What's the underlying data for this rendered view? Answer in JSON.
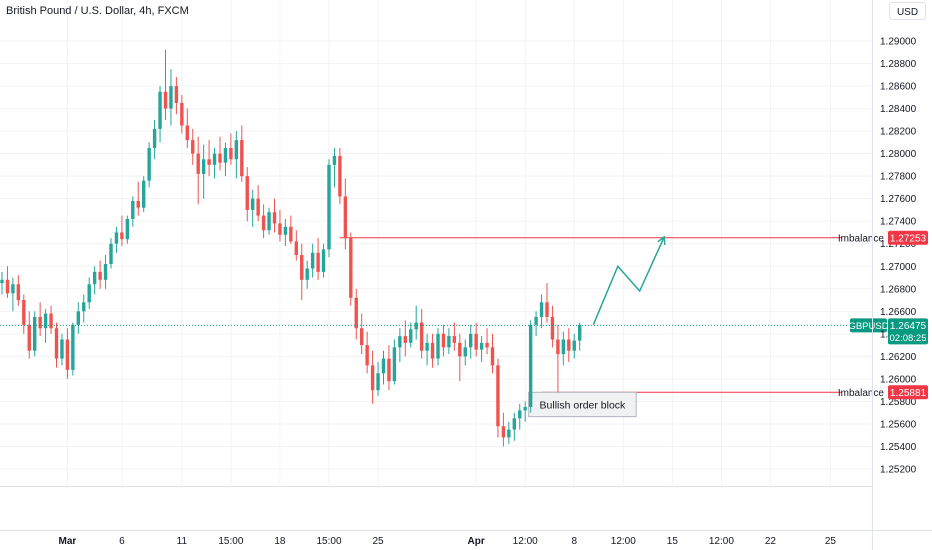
{
  "header": {
    "title": "British Pound / U.S. Dollar, 4h, FXCM"
  },
  "currency_button": {
    "label": "USD"
  },
  "colors": {
    "up": "#26a69a",
    "down": "#ef5350",
    "price_line": "#089981",
    "imbalance": "#f23645",
    "projection": "#26a69a",
    "grid": "#f2f3f5",
    "text": "#131722"
  },
  "chart_data": {
    "type": "candlestick",
    "symbol": "GBPUSD",
    "interval": "4h",
    "ylim": [
      1.2505,
      1.2945
    ],
    "yticks": [
      "1.29000",
      "1.28800",
      "1.28600",
      "1.28400",
      "1.28200",
      "1.28000",
      "1.27800",
      "1.27600",
      "1.27400",
      "1.27200",
      "1.27000",
      "1.26800",
      "1.26600",
      "1.26400",
      "1.26200",
      "1.26000",
      "1.25800",
      "1.25600",
      "1.25400",
      "1.25200"
    ],
    "xticks": [
      {
        "label": "Mar",
        "bar": 12,
        "bold": true
      },
      {
        "label": "6",
        "bar": 22,
        "bold": false
      },
      {
        "label": "11",
        "bar": 33,
        "bold": false
      },
      {
        "label": "15:00",
        "bar": 42,
        "bold": false
      },
      {
        "label": "18",
        "bar": 51,
        "bold": false
      },
      {
        "label": "15:00",
        "bar": 60,
        "bold": false
      },
      {
        "label": "25",
        "bar": 69,
        "bold": false
      },
      {
        "label": "Apr",
        "bar": 87,
        "bold": true
      },
      {
        "label": "12:00",
        "bar": 96,
        "bold": false
      },
      {
        "label": "8",
        "bar": 105,
        "bold": false
      },
      {
        "label": "12:00",
        "bar": 114,
        "bold": false
      },
      {
        "label": "15",
        "bar": 123,
        "bold": false
      },
      {
        "label": "12:00",
        "bar": 132,
        "bold": false
      },
      {
        "label": "22",
        "bar": 141,
        "bold": false
      },
      {
        "label": "25",
        "bar": 152,
        "bold": false
      }
    ],
    "candles": [
      [
        1.2685,
        1.2695,
        1.2675,
        1.2688
      ],
      [
        1.2688,
        1.27,
        1.2672,
        1.2676
      ],
      [
        1.2676,
        1.269,
        1.266,
        1.2684
      ],
      [
        1.2684,
        1.2692,
        1.2665,
        1.267
      ],
      [
        1.267,
        1.2675,
        1.264,
        1.2648
      ],
      [
        1.2648,
        1.266,
        1.2618,
        1.2625
      ],
      [
        1.2625,
        1.266,
        1.262,
        1.2655
      ],
      [
        1.2655,
        1.2668,
        1.2638,
        1.2645
      ],
      [
        1.2645,
        1.2662,
        1.2632,
        1.2658
      ],
      [
        1.2658,
        1.2665,
        1.264,
        1.2645
      ],
      [
        1.2645,
        1.265,
        1.261,
        1.2618
      ],
      [
        1.2618,
        1.264,
        1.2612,
        1.2635
      ],
      [
        1.2635,
        1.2645,
        1.26,
        1.2608
      ],
      [
        1.2608,
        1.265,
        1.2603,
        1.2648
      ],
      [
        1.2648,
        1.2668,
        1.264,
        1.266
      ],
      [
        1.266,
        1.2675,
        1.265,
        1.2668
      ],
      [
        1.2668,
        1.269,
        1.2662,
        1.2684
      ],
      [
        1.2684,
        1.27,
        1.2675,
        1.2695
      ],
      [
        1.2695,
        1.2705,
        1.268,
        1.2688
      ],
      [
        1.2688,
        1.271,
        1.268,
        1.2702
      ],
      [
        1.2702,
        1.2725,
        1.2698,
        1.272
      ],
      [
        1.272,
        1.2735,
        1.2712,
        1.273
      ],
      [
        1.273,
        1.2745,
        1.2718,
        1.2724
      ],
      [
        1.2724,
        1.2745,
        1.272,
        1.2742
      ],
      [
        1.2742,
        1.2762,
        1.2735,
        1.2758
      ],
      [
        1.2758,
        1.2775,
        1.2745,
        1.2752
      ],
      [
        1.2752,
        1.278,
        1.2748,
        1.2776
      ],
      [
        1.2776,
        1.281,
        1.277,
        1.2805
      ],
      [
        1.2805,
        1.283,
        1.2795,
        1.2822
      ],
      [
        1.2822,
        1.286,
        1.281,
        1.2855
      ],
      [
        1.2855,
        1.2892,
        1.283,
        1.284
      ],
      [
        1.284,
        1.2875,
        1.2825,
        1.286
      ],
      [
        1.286,
        1.2868,
        1.2835,
        1.2845
      ],
      [
        1.2845,
        1.2852,
        1.2818,
        1.2825
      ],
      [
        1.2825,
        1.284,
        1.2805,
        1.2812
      ],
      [
        1.2812,
        1.2822,
        1.279,
        1.28
      ],
      [
        1.28,
        1.2815,
        1.2755,
        1.2782
      ],
      [
        1.2782,
        1.2808,
        1.276,
        1.2795
      ],
      [
        1.2795,
        1.2812,
        1.278,
        1.279
      ],
      [
        1.279,
        1.2805,
        1.2778,
        1.28
      ],
      [
        1.28,
        1.2815,
        1.2785,
        1.2792
      ],
      [
        1.2792,
        1.281,
        1.278,
        1.2805
      ],
      [
        1.2805,
        1.2818,
        1.279,
        1.2795
      ],
      [
        1.2795,
        1.282,
        1.2778,
        1.2812
      ],
      [
        1.2812,
        1.2825,
        1.2775,
        1.278
      ],
      [
        1.278,
        1.2788,
        1.274,
        1.275
      ],
      [
        1.275,
        1.2768,
        1.2735,
        1.276
      ],
      [
        1.276,
        1.2772,
        1.274,
        1.2745
      ],
      [
        1.2745,
        1.2755,
        1.2725,
        1.2732
      ],
      [
        1.2732,
        1.2752,
        1.2728,
        1.2748
      ],
      [
        1.2748,
        1.276,
        1.273,
        1.2738
      ],
      [
        1.2738,
        1.275,
        1.2722,
        1.2728
      ],
      [
        1.2728,
        1.2742,
        1.2718,
        1.2735
      ],
      [
        1.2735,
        1.2745,
        1.272,
        1.2722
      ],
      [
        1.2722,
        1.2732,
        1.2705,
        1.271
      ],
      [
        1.271,
        1.272,
        1.267,
        1.2688
      ],
      [
        1.2688,
        1.2705,
        1.268,
        1.2698
      ],
      [
        1.2698,
        1.272,
        1.269,
        1.2712
      ],
      [
        1.2712,
        1.2725,
        1.2688,
        1.2695
      ],
      [
        1.2695,
        1.272,
        1.269,
        1.2715
      ],
      [
        1.2715,
        1.2795,
        1.2708,
        1.279
      ],
      [
        1.279,
        1.2805,
        1.277,
        1.2798
      ],
      [
        1.2798,
        1.2805,
        1.2755,
        1.2762
      ],
      [
        1.2762,
        1.2778,
        1.2715,
        1.2725
      ],
      [
        1.2725,
        1.273,
        1.2665,
        1.2672
      ],
      [
        1.2672,
        1.268,
        1.2635,
        1.2645
      ],
      [
        1.2645,
        1.2658,
        1.2622,
        1.263
      ],
      [
        1.263,
        1.2642,
        1.2605,
        1.2612
      ],
      [
        1.2612,
        1.2625,
        1.2578,
        1.259
      ],
      [
        1.259,
        1.2615,
        1.2585,
        1.2605
      ],
      [
        1.2605,
        1.2625,
        1.2595,
        1.2618
      ],
      [
        1.2618,
        1.263,
        1.259,
        1.2598
      ],
      [
        1.2598,
        1.2635,
        1.2595,
        1.2628
      ],
      [
        1.2628,
        1.2645,
        1.2615,
        1.2638
      ],
      [
        1.2638,
        1.2652,
        1.262,
        1.2632
      ],
      [
        1.2632,
        1.265,
        1.2628,
        1.2644
      ],
      [
        1.2644,
        1.2665,
        1.2635,
        1.265
      ],
      [
        1.265,
        1.2662,
        1.2618,
        1.2625
      ],
      [
        1.2625,
        1.264,
        1.2612,
        1.2632
      ],
      [
        1.2632,
        1.264,
        1.261,
        1.2618
      ],
      [
        1.2618,
        1.2645,
        1.2612,
        1.264
      ],
      [
        1.264,
        1.2648,
        1.262,
        1.2628
      ],
      [
        1.2628,
        1.2645,
        1.2622,
        1.2638
      ],
      [
        1.2638,
        1.265,
        1.2625,
        1.2632
      ],
      [
        1.2632,
        1.264,
        1.2598,
        1.262
      ],
      [
        1.262,
        1.2635,
        1.2612,
        1.2628
      ],
      [
        1.2628,
        1.2648,
        1.2618,
        1.264
      ],
      [
        1.264,
        1.265,
        1.262,
        1.2626
      ],
      [
        1.2626,
        1.2638,
        1.2615,
        1.2632
      ],
      [
        1.2632,
        1.2645,
        1.2622,
        1.2628
      ],
      [
        1.2628,
        1.264,
        1.2605,
        1.2612
      ],
      [
        1.2612,
        1.2618,
        1.2548,
        1.2558
      ],
      [
        1.2558,
        1.257,
        1.254,
        1.2548
      ],
      [
        1.2548,
        1.2562,
        1.2542,
        1.2555
      ],
      [
        1.2555,
        1.257,
        1.2545,
        1.2565
      ],
      [
        1.2565,
        1.2578,
        1.2555,
        1.2572
      ],
      [
        1.2572,
        1.258,
        1.2562,
        1.2575
      ],
      [
        1.2575,
        1.2652,
        1.257,
        1.2648
      ],
      [
        1.2648,
        1.266,
        1.2638,
        1.2655
      ],
      [
        1.2655,
        1.2675,
        1.2645,
        1.2668
      ],
      [
        1.2668,
        1.2685,
        1.265,
        1.2655
      ],
      [
        1.2655,
        1.2665,
        1.2628,
        1.2635
      ],
      [
        1.2635,
        1.2648,
        1.2588,
        1.2622
      ],
      [
        1.2622,
        1.2642,
        1.2612,
        1.2635
      ],
      [
        1.2635,
        1.2645,
        1.2615,
        1.2625
      ],
      [
        1.2625,
        1.264,
        1.2618,
        1.2634
      ],
      [
        1.2634,
        1.265,
        1.2625,
        1.2648
      ]
    ],
    "current_price": {
      "label": "GBPUSD",
      "value": "1.26475",
      "price": 1.26475,
      "countdown": "02:08:25"
    },
    "levels": [
      {
        "label": "Imbalance",
        "value": "1.27253",
        "price": 1.27253,
        "from_bar": 62
      },
      {
        "label": "Imbalance",
        "value": "1.25881",
        "price": 1.25881,
        "from_bar": 99
      }
    ],
    "order_block": {
      "label": "Bullish order block",
      "from_bar": 97,
      "to_bar": 116,
      "top": 1.25881,
      "bottom": 1.25665
    },
    "projection": [
      {
        "bar": 108.5,
        "price": 1.2648
      },
      {
        "bar": 113,
        "price": 1.27
      },
      {
        "bar": 117,
        "price": 1.2678
      },
      {
        "bar": 121.5,
        "price": 1.2726
      }
    ]
  }
}
